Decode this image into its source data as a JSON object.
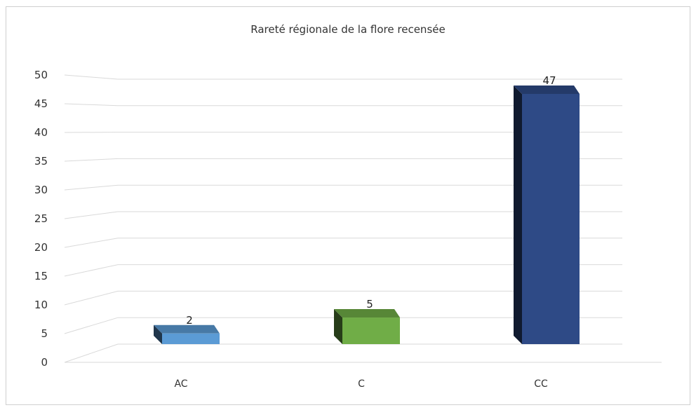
{
  "chart_data": {
    "type": "bar",
    "title": "Rareté régionale de la flore recensée",
    "xlabel": "",
    "ylabel": "",
    "categories": [
      "AC",
      "C",
      "CC"
    ],
    "series": [
      {
        "values": [
          2,
          5,
          47
        ]
      }
    ],
    "data_labels": [
      "2",
      "5",
      "47"
    ],
    "ylim": [
      0,
      50
    ],
    "yticks": [
      "0",
      "5",
      "10",
      "15",
      "20",
      "25",
      "30",
      "35",
      "40",
      "45",
      "50"
    ],
    "grid": true,
    "legend": "none",
    "style": "3d-column",
    "colors": {
      "AC": "#5b9bd5",
      "C": "#70ad47",
      "CC": "#2e4a86"
    }
  }
}
